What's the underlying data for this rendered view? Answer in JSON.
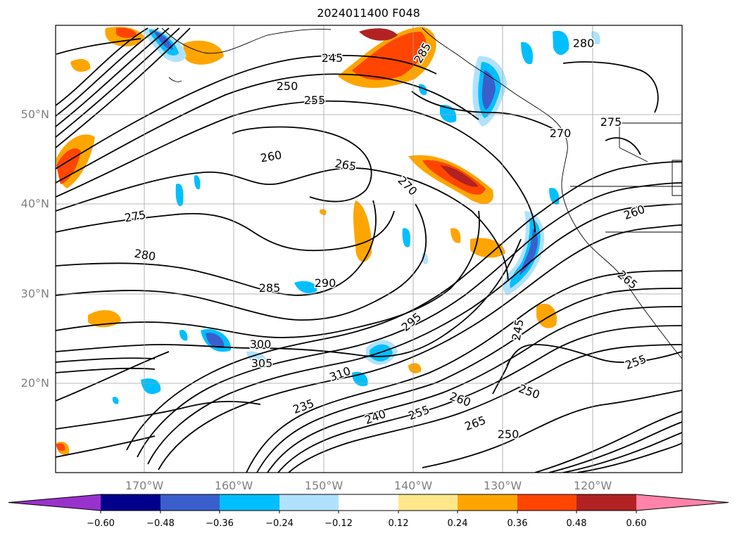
{
  "title": "2024011400 F048",
  "map": {
    "projection": "cylindrical",
    "lon_range": [
      -180,
      -110
    ],
    "lat_range": [
      10,
      60
    ],
    "lat_labels": [
      "50°N",
      "40°N",
      "30°N",
      "20°N"
    ],
    "lon_labels": [
      "170°W",
      "160°W",
      "150°W",
      "140°W",
      "130°W",
      "120°W"
    ],
    "gridlines": true,
    "contour_labels": [
      "245",
      "250",
      "255",
      "260",
      "265",
      "270",
      "275",
      "280",
      "285",
      "290",
      "295",
      "300",
      "305",
      "310",
      "235",
      "240",
      "255",
      "260",
      "265",
      "250"
    ]
  },
  "colorbar": {
    "ticks": [
      "−0.60",
      "−0.48",
      "−0.36",
      "−0.24",
      "−0.12",
      "0.12",
      "0.24",
      "0.36",
      "0.48",
      "0.60"
    ],
    "colors": [
      "#9932cc",
      "#00008b",
      "#3a5fcd",
      "#00bfff",
      "#b0e2ff",
      "#ffffff",
      "#ffe78a",
      "#ffa500",
      "#ff4500",
      "#b22222",
      "#ff83aa"
    ],
    "extend": "both"
  }
}
